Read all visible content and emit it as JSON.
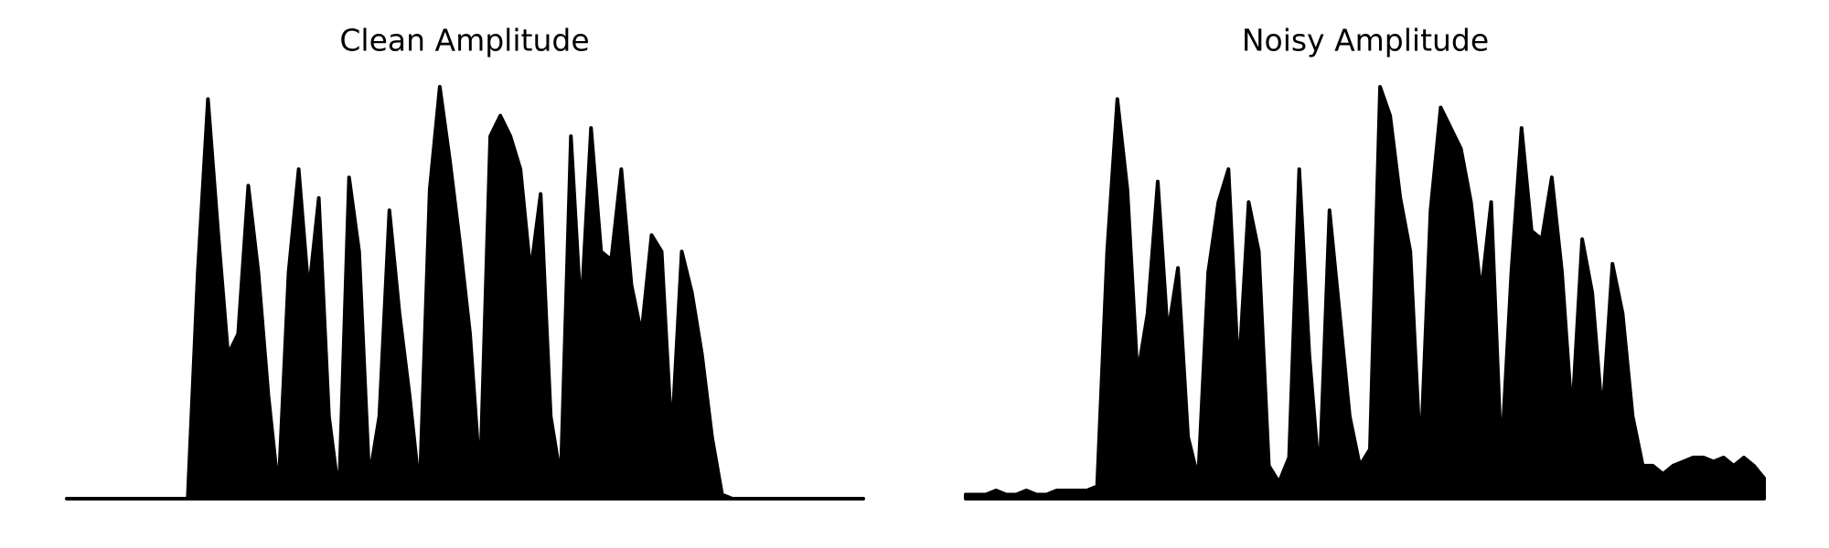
{
  "chart_data": [
    {
      "type": "area",
      "title": "Clean Amplitude",
      "color": "#000000",
      "ylim": [
        0,
        1
      ],
      "values": [
        0,
        0,
        0,
        0,
        0,
        0,
        0,
        0,
        0,
        0,
        0,
        0,
        0,
        0.55,
        0.97,
        0.65,
        0.35,
        0.4,
        0.76,
        0.55,
        0.25,
        0.02,
        0.55,
        0.8,
        0.5,
        0.73,
        0.2,
        0.01,
        0.78,
        0.6,
        0.05,
        0.2,
        0.7,
        0.45,
        0.25,
        0.02,
        0.75,
        1.0,
        0.82,
        0.62,
        0.4,
        0.05,
        0.88,
        0.93,
        0.88,
        0.8,
        0.55,
        0.74,
        0.2,
        0.05,
        0.88,
        0.45,
        0.9,
        0.6,
        0.58,
        0.8,
        0.52,
        0.4,
        0.64,
        0.6,
        0.15,
        0.6,
        0.5,
        0.35,
        0.15,
        0.01,
        0,
        0,
        0,
        0,
        0,
        0,
        0,
        0,
        0,
        0,
        0,
        0,
        0,
        0
      ]
    },
    {
      "type": "area",
      "title": "Noisy Amplitude",
      "color": "#000000",
      "ylim": [
        0,
        1
      ],
      "values": [
        0.01,
        0.01,
        0.01,
        0.02,
        0.01,
        0.01,
        0.02,
        0.01,
        0.01,
        0.02,
        0.02,
        0.02,
        0.02,
        0.03,
        0.6,
        0.97,
        0.75,
        0.3,
        0.45,
        0.77,
        0.4,
        0.56,
        0.15,
        0.05,
        0.55,
        0.72,
        0.8,
        0.3,
        0.72,
        0.6,
        0.08,
        0.04,
        0.1,
        0.8,
        0.35,
        0.05,
        0.7,
        0.45,
        0.2,
        0.08,
        0.12,
        1.0,
        0.93,
        0.73,
        0.6,
        0.1,
        0.7,
        0.95,
        0.9,
        0.85,
        0.72,
        0.5,
        0.72,
        0.1,
        0.55,
        0.9,
        0.65,
        0.63,
        0.78,
        0.55,
        0.2,
        0.63,
        0.5,
        0.2,
        0.57,
        0.45,
        0.2,
        0.08,
        0.08,
        0.06,
        0.08,
        0.09,
        0.1,
        0.1,
        0.09,
        0.1,
        0.08,
        0.1,
        0.08,
        0.05
      ]
    }
  ]
}
